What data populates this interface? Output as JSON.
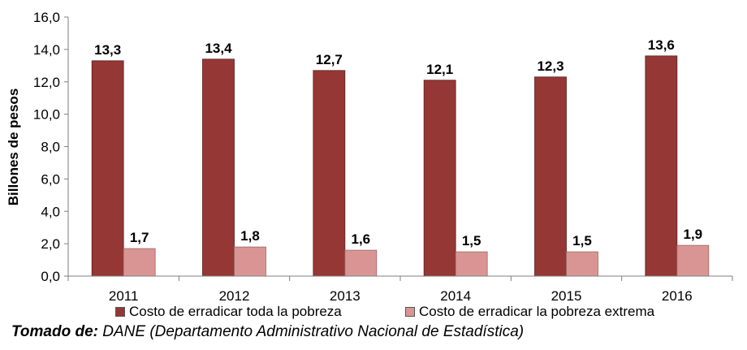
{
  "chart_data": {
    "type": "bar",
    "title": "",
    "xlabel": "",
    "ylabel": "Billones de pesos",
    "ylim": [
      0,
      16
    ],
    "yticks": [
      "0,0",
      "2,0",
      "4,0",
      "6,0",
      "8,0",
      "10,0",
      "12,0",
      "14,0",
      "16,0"
    ],
    "categories": [
      "2011",
      "2012",
      "2013",
      "2014",
      "2015",
      "2016"
    ],
    "series": [
      {
        "name": "Costo de erradicar toda la pobreza",
        "color": "#953735",
        "values": [
          13.3,
          13.4,
          12.7,
          12.1,
          12.3,
          13.6
        ],
        "labels": [
          "13,3",
          "13,4",
          "12,7",
          "12,1",
          "12,3",
          "13,6"
        ]
      },
      {
        "name": "Costo de erradicar la pobreza extrema",
        "color": "#d99594",
        "values": [
          1.7,
          1.8,
          1.6,
          1.5,
          1.5,
          1.9
        ],
        "labels": [
          "1,7",
          "1,8",
          "1,6",
          "1,5",
          "1,5",
          "1,9"
        ]
      }
    ],
    "legend_position": "bottom",
    "grid": false
  },
  "source": {
    "prefix": "Tomado de:",
    "text": " DANE (Departamento Administrativo Nacional de Estadística)"
  }
}
